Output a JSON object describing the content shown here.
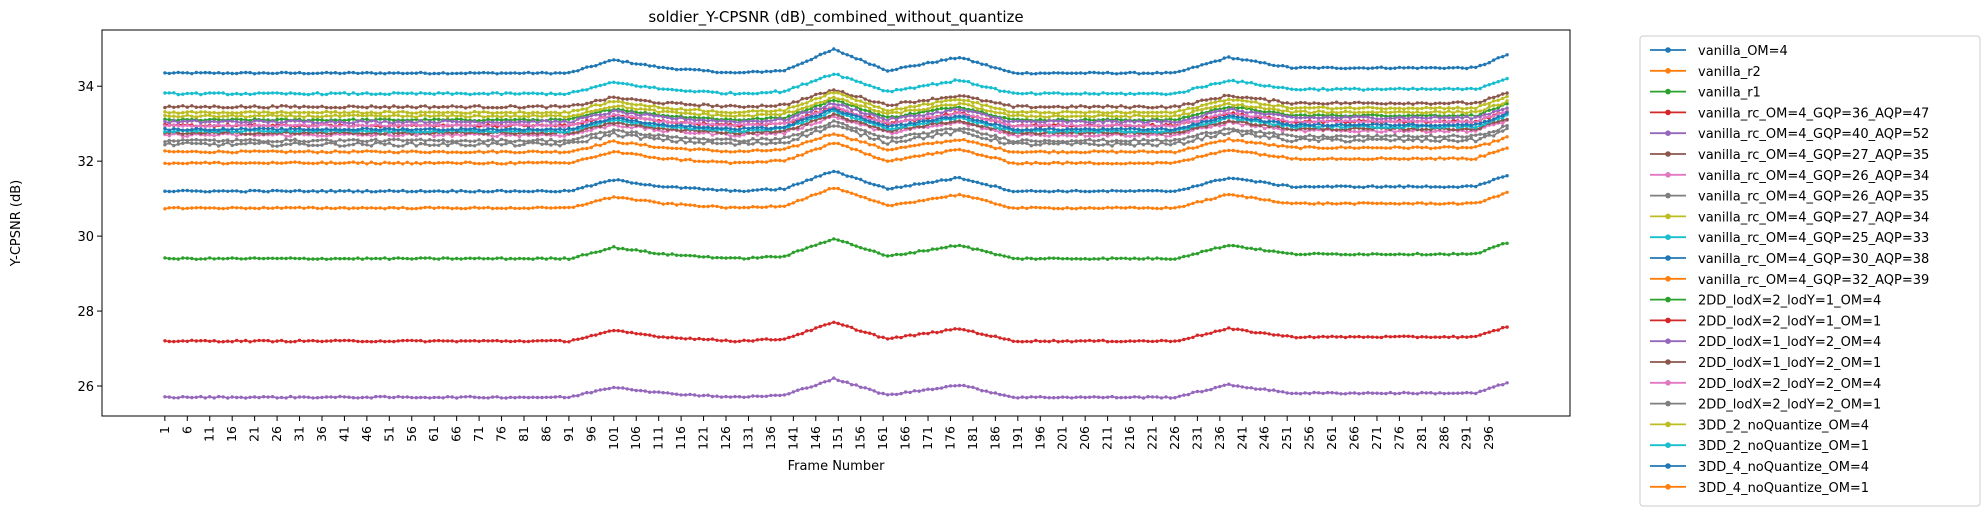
{
  "chart_data": {
    "type": "line",
    "title": "soldier_Y-CPSNR (dB)_combined_without_quantize",
    "xlabel": "Frame Number",
    "ylabel": "Y-CPSNR (dB)",
    "xlim": [
      1,
      300
    ],
    "ylim": [
      25.2,
      35.5
    ],
    "x_ticks_start": 1,
    "x_ticks_end": 296,
    "x_ticks_step": 5,
    "y_ticks": [
      26,
      28,
      30,
      32,
      34
    ],
    "grid": false,
    "legend_placement": "outside-right",
    "profile": {
      "frames": [
        1,
        91,
        101,
        112,
        128,
        139,
        150,
        162,
        178,
        190,
        226,
        238,
        252,
        293,
        300
      ],
      "shape": [
        0,
        0,
        0.5,
        0.2,
        0,
        0.1,
        0.9,
        0.1,
        0.6,
        0,
        0,
        0.6,
        0.2,
        0.2,
        0.7
      ]
    },
    "series": [
      {
        "name": "vanilla_OM=4",
        "color": "#1f77b4",
        "base": 34.35,
        "amp": 0.7,
        "noise": 0.04
      },
      {
        "name": "vanilla_r2",
        "color": "#ff7f0e",
        "base": 32.25,
        "amp": 0.55,
        "noise": 0.05
      },
      {
        "name": "vanilla_r1",
        "color": "#2ca02c",
        "base": 33.1,
        "amp": 0.6,
        "noise": 0.05
      },
      {
        "name": "vanilla_rc_OM=4_GQP=36_AQP=47",
        "color": "#d62728",
        "base": 32.95,
        "amp": 0.55,
        "noise": 0.06
      },
      {
        "name": "vanilla_rc_OM=4_GQP=40_AQP=52",
        "color": "#9467bd",
        "base": 33.05,
        "amp": 0.55,
        "noise": 0.07
      },
      {
        "name": "vanilla_rc_OM=4_GQP=27_AQP=35",
        "color": "#8c564b",
        "base": 33.45,
        "amp": 0.5,
        "noise": 0.06
      },
      {
        "name": "vanilla_rc_OM=4_GQP=26_AQP=34",
        "color": "#e377c2",
        "base": 32.7,
        "amp": 0.55,
        "noise": 0.08
      },
      {
        "name": "vanilla_rc_OM=4_GQP=26_AQP=35",
        "color": "#7f7f7f",
        "base": 32.45,
        "amp": 0.55,
        "noise": 0.1
      },
      {
        "name": "vanilla_rc_OM=4_GQP=27_AQP=34",
        "color": "#bcbd22",
        "base": 33.2,
        "amp": 0.55,
        "noise": 0.06
      },
      {
        "name": "vanilla_rc_OM=4_GQP=25_AQP=33",
        "color": "#17becf",
        "base": 33.8,
        "amp": 0.6,
        "noise": 0.05
      },
      {
        "name": "vanilla_rc_OM=4_GQP=30_AQP=38",
        "color": "#1f77b4",
        "base": 31.2,
        "amp": 0.6,
        "noise": 0.04
      },
      {
        "name": "vanilla_rc_OM=4_GQP=32_AQP=39",
        "color": "#ff7f0e",
        "base": 30.75,
        "amp": 0.6,
        "noise": 0.04
      },
      {
        "name": "2DD_lodX=2_lodY=1_OM=4",
        "color": "#2ca02c",
        "base": 29.4,
        "amp": 0.6,
        "noise": 0.04
      },
      {
        "name": "2DD_lodX=2_lodY=1_OM=1",
        "color": "#d62728",
        "base": 27.2,
        "amp": 0.55,
        "noise": 0.04
      },
      {
        "name": "2DD_lodX=1_lodY=2_OM=4",
        "color": "#9467bd",
        "base": 25.7,
        "amp": 0.55,
        "noise": 0.04
      },
      {
        "name": "2DD_lodX=1_lodY=2_OM=1",
        "color": "#8c564b",
        "base": 32.75,
        "amp": 0.55,
        "noise": 0.06
      },
      {
        "name": "2DD_lodX=2_lodY=2_OM=4",
        "color": "#e377c2",
        "base": 32.95,
        "amp": 0.55,
        "noise": 0.06
      },
      {
        "name": "2DD_lodX=2_lodY=2_OM=1",
        "color": "#7f7f7f",
        "base": 32.55,
        "amp": 0.55,
        "noise": 0.07
      },
      {
        "name": "3DD_2_noQuantize_OM=4",
        "color": "#bcbd22",
        "base": 33.3,
        "amp": 0.6,
        "noise": 0.05
      },
      {
        "name": "3DD_2_noQuantize_OM=1",
        "color": "#17becf",
        "base": 32.8,
        "amp": 0.6,
        "noise": 0.05
      },
      {
        "name": "3DD_4_noQuantize_OM=4",
        "color": "#1f77b4",
        "base": 32.85,
        "amp": 0.6,
        "noise": 0.05
      },
      {
        "name": "3DD_4_noQuantize_OM=1",
        "color": "#ff7f0e",
        "base": 31.95,
        "amp": 0.6,
        "noise": 0.05
      }
    ]
  }
}
